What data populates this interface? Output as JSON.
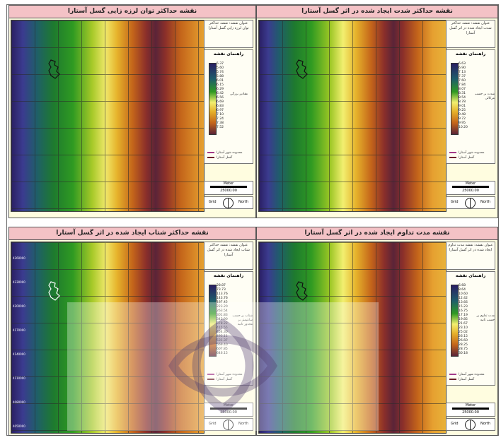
{
  "panels": [
    {
      "id": "tl",
      "title": "نقشه حداکثر توان لرزه زایی گسل آستارا",
      "legend_title": "عنوان نقشه: نقشه حداکثر توان لرزه زایی گسل آستارا",
      "legend_header": "راهنمای نقشه",
      "ticks": [
        "5.37",
        "5.60",
        "5.74",
        "5.88",
        "6.01",
        "6.15",
        "6.29",
        "6.42",
        "6.56",
        "6.69",
        "6.83",
        "6.97",
        "7.10",
        "7.24",
        "7.38",
        "7.52"
      ],
      "note": "مقادیر بزرگی",
      "lines": [
        "محدوده شهر آستارا",
        "گسل آستارا"
      ],
      "scale_title": "Meter",
      "scale_value": "25000.00",
      "north_left": "Grid",
      "north_right": "North"
    },
    {
      "id": "tr",
      "title": "نقشه حداکثر شدت ایجاد شده در اثر گسل آستارا",
      "legend_title": "عنوان نقشه: نقشه حداکثر شدت ایجاد شده در اثر گسل آستارا",
      "legend_header": "راهنمای نقشه",
      "ticks": [
        "6.63",
        "6.90",
        "7.13",
        "7.37",
        "7.60",
        "7.84",
        "8.07",
        "8.31",
        "8.54",
        "8.78",
        "9.01",
        "9.25",
        "9.48",
        "9.72",
        "9.95",
        "10.20"
      ],
      "note": "شدت بر حسب مرکالی",
      "lines": [
        "محدوده شهر آستارا",
        "گسل آستارا"
      ],
      "scale_title": "Meter",
      "scale_value": "25000.00",
      "north_left": "Grid",
      "north_right": "North"
    },
    {
      "id": "bl",
      "title": "نقشه حداکثر شتاب ایجاد شده در اثر گسل آستارا",
      "legend_title": "عنوان نقشه: نقشه حداکثر شتاب ایجاد شده در اثر گسل آستارا",
      "legend_header": "راهنمای نقشه",
      "ticks": [
        "28.87",
        "73.73",
        "113.76",
        "143.76",
        "187.42",
        "223.20",
        "263.54",
        "301.83",
        "342.90",
        "378.22",
        "415.55",
        "454.30",
        "493.11",
        "531.37",
        "569.40",
        "607.85",
        "646.15"
      ],
      "note": "شتاب بر حسب سانتیمتر بر مجذور ثانیه",
      "lines": [
        "محدوده شهر آستارا",
        "گسل آستارا"
      ],
      "scale_title": "Meter",
      "scale_value": "25000.00",
      "north_left": "Grid",
      "north_right": "North",
      "y_labels": [
        "4260000",
        "4230000",
        "4200000",
        "4170000",
        "4140000",
        "4110000",
        "4080000",
        "4050000"
      ]
    },
    {
      "id": "br",
      "title": "نقشه مدت تداوم ایجاد شده در اثر گسل آستارا",
      "legend_title": "عنوان نقشه: نقشه مدت تداوم ایجاد شده در اثر گسل آستارا",
      "legend_header": "راهنمای نقشه",
      "ticks": [
        "6.68",
        "8.64",
        "10.60",
        "12.42",
        "13.66",
        "15.23",
        "16.75",
        "17.19",
        "19.85",
        "21.67",
        "23.10",
        "25.02",
        "26.15",
        "26.60",
        "28.25",
        "28.75",
        "30.18"
      ],
      "note": "مدت تداوم بر حسب ثانیه",
      "lines": [
        "محدوده شهر آستارا",
        "گسل آستارا"
      ],
      "scale_title": "Meter",
      "scale_value": "25000.00",
      "north_left": "Grid",
      "north_right": "North"
    }
  ],
  "colors": {
    "title_bg": "#f4c2c6",
    "legend_bg": "#fffde0",
    "ramp": [
      "#2a1f63",
      "#1e7a2e",
      "#f2ef70",
      "#c4651a",
      "#5a2438"
    ]
  }
}
